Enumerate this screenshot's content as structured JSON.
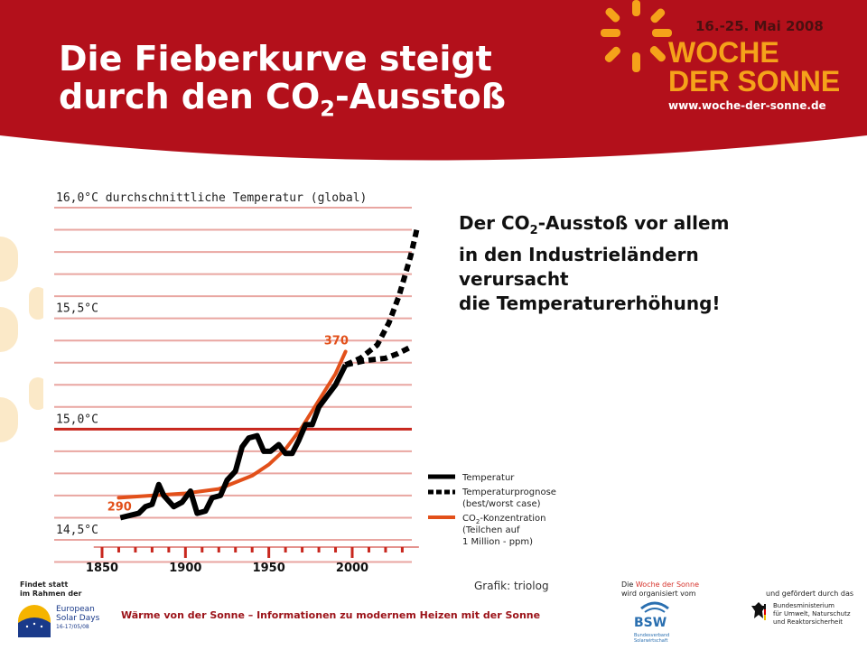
{
  "header": {
    "title_line1": "Die Fieberkurve steigt",
    "title_line2_pre": "durch den CO",
    "title_line2_sub": "2",
    "title_line2_post": "-Ausstoß",
    "event_date": "16.-25. Mai 2008",
    "event_name_line1": "WOCHE",
    "event_name_line2": "DER SONNE",
    "event_url": "www.woche-der-sonne.de"
  },
  "statement": {
    "line1_pre": "Der CO",
    "line1_sub": "2",
    "line1_post": "-Ausstoß vor allem",
    "line2": "in den Industrieländern",
    "line3": "verursacht",
    "line4": "die Temperaturerhöhung!"
  },
  "chart_data": {
    "type": "line",
    "ylabel": "16,0°C durchschnittliche Temperatur (global)",
    "y_ticks": [
      {
        "value": 16.0,
        "label": "16,0°C durchschnittliche Temperatur (global)"
      },
      {
        "value": 15.5,
        "label": "15,5°C"
      },
      {
        "value": 15.0,
        "label": "15,0°C"
      },
      {
        "value": 14.5,
        "label": "14,5°C"
      }
    ],
    "x_ticks": [
      1850,
      1900,
      1950,
      2000
    ],
    "xlim": [
      1845,
      2040
    ],
    "ylim": [
      14.42,
      16.05
    ],
    "grid": true,
    "series": [
      {
        "name": "Temperatur",
        "style": "solid",
        "color": "#000000",
        "points": [
          [
            1861,
            14.6
          ],
          [
            1872,
            14.62
          ],
          [
            1876,
            14.65
          ],
          [
            1880,
            14.66
          ],
          [
            1884,
            14.75
          ],
          [
            1887,
            14.7
          ],
          [
            1893,
            14.65
          ],
          [
            1898,
            14.67
          ],
          [
            1903,
            14.72
          ],
          [
            1907,
            14.62
          ],
          [
            1912,
            14.63
          ],
          [
            1916,
            14.69
          ],
          [
            1921,
            14.7
          ],
          [
            1925,
            14.77
          ],
          [
            1930,
            14.81
          ],
          [
            1934,
            14.92
          ],
          [
            1938,
            14.96
          ],
          [
            1943,
            14.97
          ],
          [
            1947,
            14.9
          ],
          [
            1951,
            14.9
          ],
          [
            1956,
            14.93
          ],
          [
            1960,
            14.89
          ],
          [
            1964,
            14.89
          ],
          [
            1968,
            14.95
          ],
          [
            1972,
            15.02
          ],
          [
            1976,
            15.02
          ],
          [
            1980,
            15.1
          ],
          [
            1985,
            15.15
          ],
          [
            1990,
            15.2
          ],
          [
            1996,
            15.29
          ]
        ]
      },
      {
        "name": "Temperaturprognose (best/worst case)",
        "style": "dashed",
        "color": "#000000",
        "points_worst": [
          [
            1996,
            15.29
          ],
          [
            2005,
            15.32
          ],
          [
            2015,
            15.38
          ],
          [
            2022,
            15.48
          ],
          [
            2028,
            15.6
          ],
          [
            2035,
            15.78
          ],
          [
            2039,
            15.91
          ]
        ],
        "points_best": [
          [
            1996,
            15.29
          ],
          [
            2008,
            15.31
          ],
          [
            2020,
            15.32
          ],
          [
            2027,
            15.34
          ],
          [
            2035,
            15.37
          ]
        ]
      },
      {
        "name": "CO2-Konzentration (Teilchen auf 1 Million - ppm)",
        "style": "solid",
        "color": "#e2501a",
        "points": [
          [
            1860,
            14.69
          ],
          [
            1880,
            14.7
          ],
          [
            1900,
            14.71
          ],
          [
            1920,
            14.73
          ],
          [
            1940,
            14.79
          ],
          [
            1950,
            14.84
          ],
          [
            1960,
            14.91
          ],
          [
            1970,
            15.01
          ],
          [
            1980,
            15.13
          ],
          [
            1990,
            15.25
          ],
          [
            1996,
            15.35
          ]
        ]
      }
    ],
    "annotations": [
      {
        "text": "290",
        "x": 1865,
        "y": 14.69
      },
      {
        "text": "370",
        "x": 1995,
        "y": 15.35
      }
    ],
    "legend": {
      "placement": "bottom-right",
      "entries": [
        {
          "style": "solid-black",
          "text_lines": [
            "Temperatur"
          ]
        },
        {
          "style": "dashed-black",
          "text_lines": [
            "Temperaturprognose",
            "(best/worst case)"
          ]
        },
        {
          "style": "solid-orange",
          "text_pre": "CO",
          "text_sub": "2",
          "text_post": "-Konzentration",
          "text_lines": [
            "(Teilchen auf",
            "1 Million - ppm)"
          ]
        }
      ]
    }
  },
  "credit": "Grafik: triolog",
  "footer": {
    "findet_line1": "Findet statt",
    "findet_line2": "im Rahmen der",
    "esd_line1": "European",
    "esd_line2": "Solar Days",
    "esd_line3": "16-17/05/08",
    "tagline": "Wärme von der Sonne – Informationen zu modernem Heizen mit der Sonne",
    "org_pre": "Die ",
    "org_mid": "Woche der Sonne",
    "org_line2": "wird organisiert vom",
    "bsw_name": "BSW",
    "bsw_sub1": "Bundesverband",
    "bsw_sub2": "Solarwirtschaft",
    "funded": "und gefördert durch das",
    "ministry_line1": "Bundesministerium",
    "ministry_line2": "für Umwelt, Naturschutz",
    "ministry_line3": "und Reaktorsicherheit"
  },
  "colors": {
    "banner_red": "#b3101b",
    "accent_orange": "#f5a21a",
    "co2_orange": "#e2501a",
    "grid_red": "#c8271e",
    "grid_pink": "#e9a6a1",
    "tagline_red": "#9b1218"
  }
}
